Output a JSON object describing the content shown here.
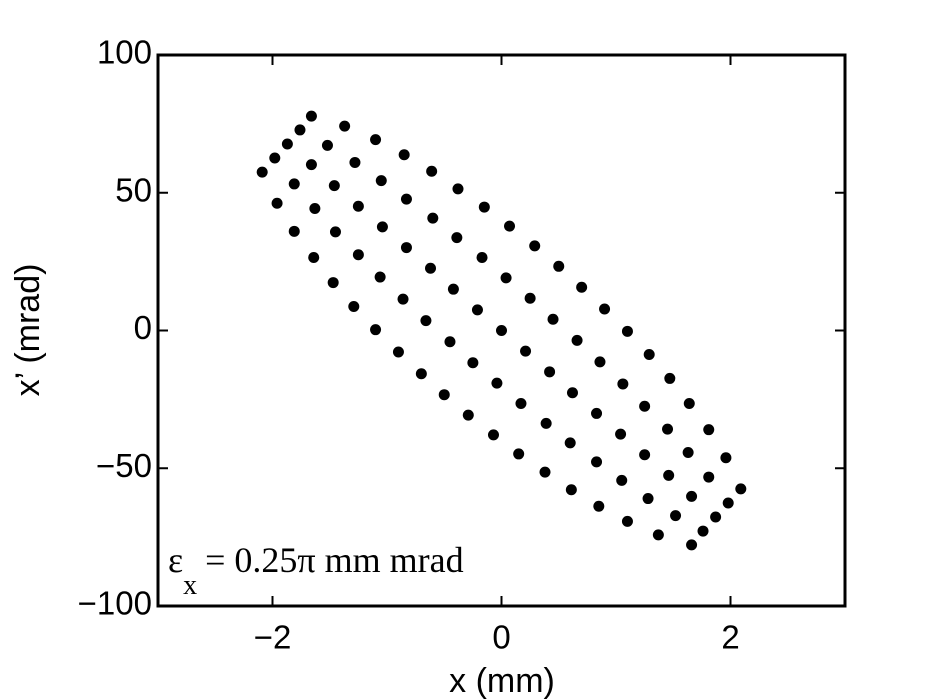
{
  "chart_data": {
    "type": "scatter",
    "xlabel": "x (mm)",
    "ylabel": "x’ (mrad)",
    "annotation": {
      "symbol": "ε",
      "subscript": "x",
      "text": "= 0.25π mm mrad"
    },
    "xlim": [
      -3,
      3
    ],
    "ylim": [
      -100,
      100
    ],
    "xticks": [
      {
        "value": -2,
        "label": "−2"
      },
      0,
      2
    ],
    "yticks": [
      {
        "value": -100,
        "label": "−100"
      },
      {
        "value": -50,
        "label": "−50"
      },
      0,
      50,
      100
    ],
    "grid": false,
    "series": [
      {
        "color": "#000000",
        "x": [
          -1.66,
          -1.76,
          -1.87,
          -1.98,
          -2.09,
          -1.37,
          -1.52,
          -1.66,
          -1.81,
          -1.96,
          -1.1,
          -1.28,
          -1.46,
          -1.63,
          -1.81,
          -0.85,
          -1.05,
          -1.25,
          -1.45,
          -1.64,
          -0.61,
          -0.83,
          -1.04,
          -1.25,
          -1.47,
          -0.38,
          -0.6,
          -0.83,
          -1.06,
          -1.29,
          -0.15,
          -0.39,
          -0.62,
          -0.86,
          -1.1,
          0.07,
          -0.17,
          -0.42,
          -0.66,
          -0.9,
          0.29,
          0.04,
          -0.21,
          -0.45,
          -0.7,
          0.5,
          0.25,
          0,
          -0.25,
          -0.5,
          -0.29,
          -0.04,
          0.21,
          0.45,
          0.7,
          -0.07,
          0.17,
          0.42,
          0.66,
          0.9,
          0.15,
          0.39,
          0.62,
          0.86,
          1.1,
          0.38,
          0.6,
          0.83,
          1.06,
          1.29,
          0.61,
          0.83,
          1.04,
          1.25,
          1.47,
          0.85,
          1.05,
          1.25,
          1.45,
          1.64,
          1.1,
          1.28,
          1.46,
          1.63,
          1.81,
          1.37,
          1.52,
          1.66,
          1.81,
          1.96,
          1.66,
          1.76,
          1.87,
          1.98,
          2.09
        ],
        "y": [
          77.8,
          72.8,
          67.7,
          62.6,
          57.5,
          74.2,
          67.2,
          60.2,
          53.2,
          46.2,
          69.3,
          61.0,
          52.6,
          44.3,
          36.0,
          63.8,
          54.4,
          45.1,
          35.8,
          26.5,
          57.8,
          47.7,
          37.6,
          27.5,
          17.4,
          51.4,
          40.8,
          30.1,
          19.4,
          8.7,
          44.8,
          33.7,
          22.6,
          11.4,
          0.3,
          37.9,
          26.5,
          15.0,
          3.6,
          -7.8,
          30.7,
          19.1,
          7.5,
          -4.1,
          -15.7,
          23.3,
          11.7,
          0,
          -11.7,
          -23.3,
          -30.7,
          -19.1,
          -7.5,
          4.1,
          15.7,
          -37.9,
          -26.5,
          -15.0,
          -3.6,
          7.8,
          -44.8,
          -33.7,
          -22.6,
          -11.4,
          -0.3,
          -51.4,
          -40.8,
          -30.1,
          -19.4,
          -8.7,
          -57.8,
          -47.7,
          -37.6,
          -27.5,
          -17.4,
          -63.8,
          -54.4,
          -45.1,
          -35.8,
          -26.5,
          -69.3,
          -61.0,
          -52.6,
          -44.3,
          -36.0,
          -74.2,
          -67.2,
          -60.2,
          -53.2,
          -46.2,
          -77.8,
          -72.8,
          -67.7,
          -62.6,
          -57.5
        ]
      }
    ]
  }
}
